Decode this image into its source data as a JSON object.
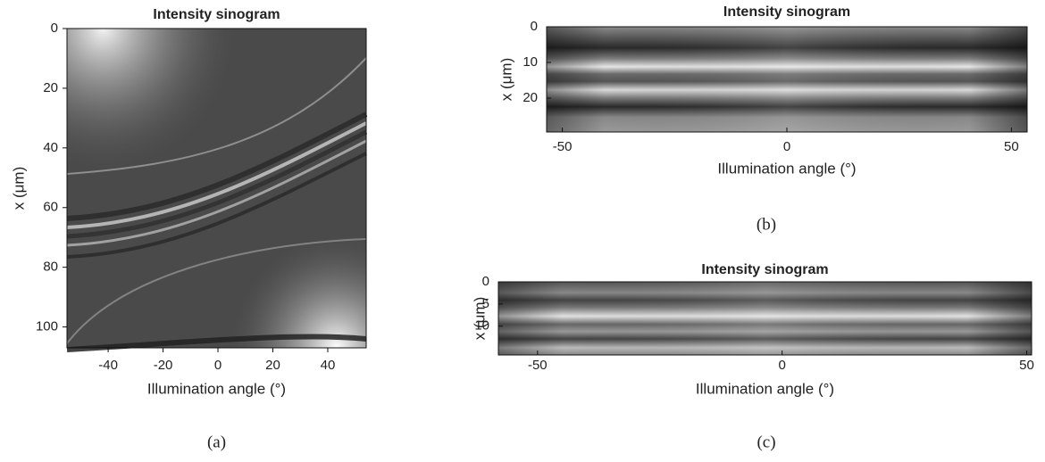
{
  "chart_data": [
    {
      "type": "image",
      "title": "Intensity sinogram",
      "xlabel": "Illumination angle (°)",
      "ylabel": "x (μm)",
      "caption": "(a)",
      "xlim": [
        -55,
        54
      ],
      "ylim": [
        0,
        107
      ],
      "y_inverted": true,
      "xticks": [
        -40,
        -20,
        0,
        20,
        40
      ],
      "yticks": [
        0,
        20,
        40,
        60,
        80,
        100
      ]
    },
    {
      "type": "image",
      "title": "Intensity sinogram",
      "xlabel": "Illumination angle (°)",
      "ylabel": "x (μm)",
      "caption": "(b)",
      "xlim": [
        -53.5,
        53.5
      ],
      "ylim": [
        0,
        29.5
      ],
      "y_inverted": true,
      "xticks": [
        -50,
        0,
        50
      ],
      "yticks": [
        0,
        10,
        20
      ]
    },
    {
      "type": "image",
      "title": "Intensity sinogram",
      "xlabel": "Illumination angle (°)",
      "ylabel": "x (μm)",
      "caption": "(c)",
      "xlim": [
        -58,
        51
      ],
      "ylim": [
        0,
        16.5
      ],
      "y_inverted": true,
      "xticks": [
        -50,
        0,
        50
      ],
      "yticks": [
        0,
        5,
        10
      ]
    }
  ]
}
